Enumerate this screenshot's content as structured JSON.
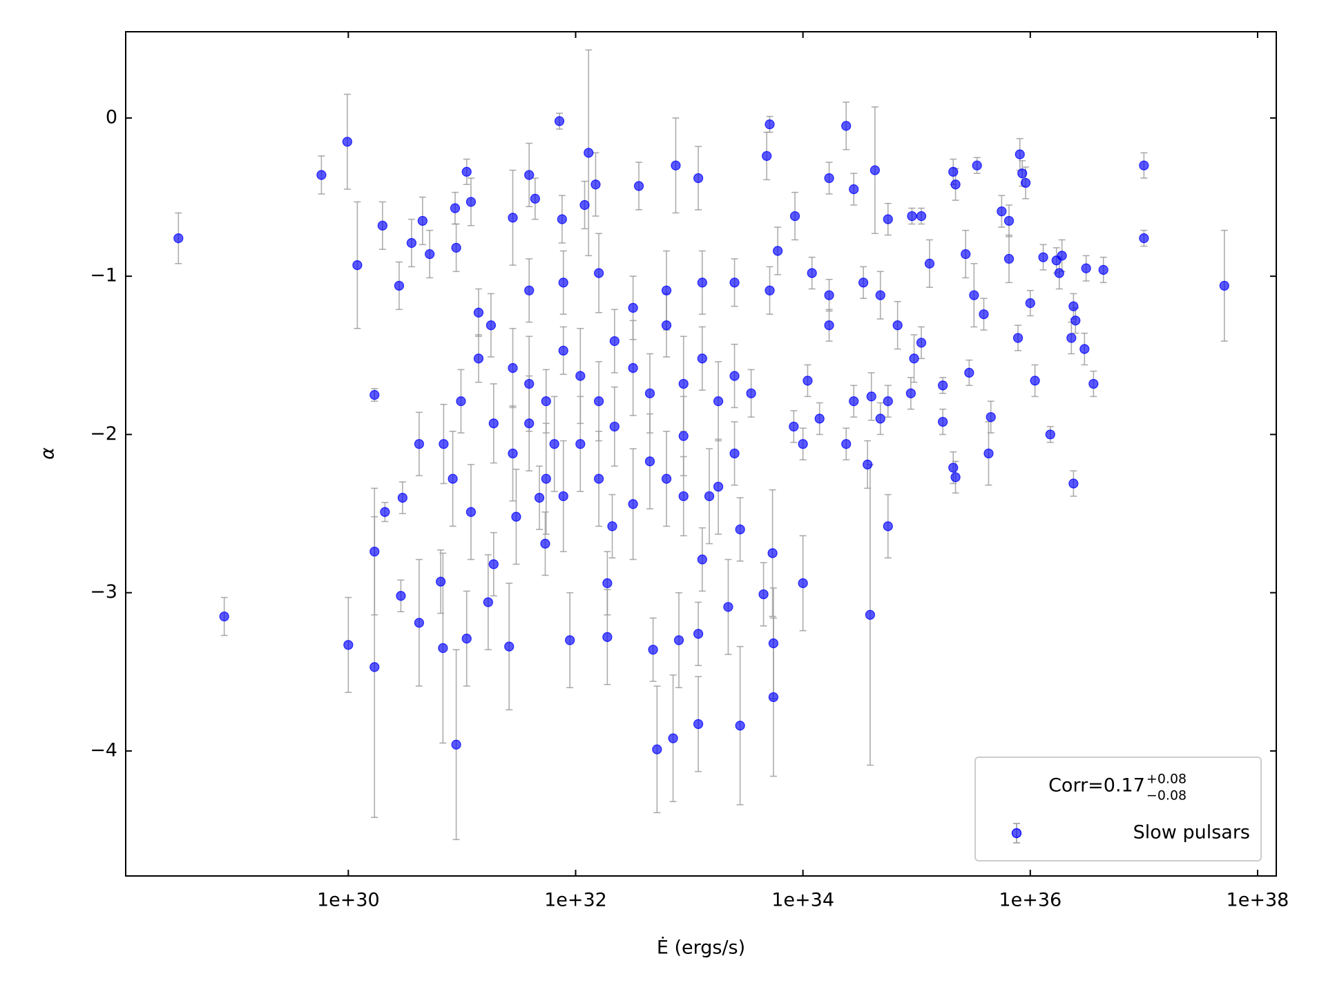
{
  "chart_data": {
    "type": "scatter",
    "xlabel": "Ė (ergs/s)",
    "ylabel": "α",
    "xscale": "log",
    "xlim": [
      1.1e+28,
      1.46e+38
    ],
    "ylim": [
      -4.79,
      0.545
    ],
    "xticks": [
      1e+30,
      1e+32,
      1e+34,
      1e+36,
      1e+38
    ],
    "yticks": [
      {
        "value": -4,
        "label": "−4"
      },
      {
        "value": -3,
        "label": "−3"
      },
      {
        "value": -2,
        "label": "−2"
      },
      {
        "value": -1,
        "label": "−1"
      },
      0
    ],
    "grid": false,
    "legend_loc": "lower right",
    "legend_title": {
      "text": "Corr=0.17",
      "sup": "+0.08",
      "sub": "−0.08"
    },
    "error_color": "#999999",
    "series": [
      {
        "name": "Slow pulsars",
        "color": "#0000ff",
        "x": [
          3.2e+28,
          8.1e+28,
          5.8e+29,
          9.8e+29,
          1e+30,
          1.2e+30,
          1.7e+30,
          1.7e+30,
          2e+30,
          1.7e+30,
          2.1e+30,
          2.9e+30,
          3e+30,
          2.8e+30,
          3.6e+30,
          4.2e+30,
          4.2e+30,
          4.5e+30,
          5.2e+30,
          6.5e+30,
          6.8e+30,
          8.9e+30,
          8.7e+30,
          1.1e+31,
          1.1e+31,
          8.9e+30,
          1.2e+31,
          1.4e+31,
          1.7e+31,
          1.9e+31,
          2.6e+31,
          2.8e+31,
          3e+31,
          3.9e+31,
          4.4e+31,
          4.8e+31,
          5.4e+31,
          7.2e+31,
          7.6e+31,
          8.9e+31,
          1.3e+32,
          1.5e+32,
          1.2e+32,
          1.9e+32,
          1.9e+32,
          2.1e+32,
          3.6e+32,
          4.8e+32,
          5.2e+32,
          7.2e+32,
          8.1e+32,
          7.6e+32,
          1.2e+33,
          1.2e+33,
          1.3e+33,
          1.2e+33,
          2.2e+33,
          2.8e+33,
          2.8e+33,
          5.1e+33,
          4.8e+33,
          5.5e+33,
          5.5e+33,
          4.5e+33,
          5.4e+33,
          6e+33,
          1e+34,
          8.5e+33,
          1.7e+34,
          2.4e+34,
          2.8e+34,
          3.9e+34,
          4.3e+34,
          5.6e+34,
          5.6e+34,
          9.1e+34,
          1.1e+35,
          1.3e+35,
          2.1e+35,
          2.2e+35,
          3.4e+35,
          2.7e+35,
          3.2e+35,
          3.9e+35,
          2.9e+35,
          2.1e+35,
          2.2e+35,
          4.3e+35,
          4.5e+35,
          1.7e+35,
          1.7e+35,
          5.6e+35,
          6.5e+35,
          6.5e+35,
          8.1e+35,
          8.5e+35,
          9.1e+35,
          7.8e+35,
          1e+36,
          1.1e+36,
          1.5e+36,
          1.3e+36,
          1.7e+36,
          1.9e+36,
          1.8e+36,
          2.3e+36,
          2.4e+36,
          2.5e+36,
          2.4e+36,
          3e+36,
          3.1e+36,
          3.6e+36,
          4.4e+36,
          1e+37,
          1e+37,
          5.1e+37,
          1.4e+31,
          1.8e+31,
          2.8e+31,
          3.9e+31,
          5.5e+31,
          7.8e+31,
          1.1e+32,
          1.6e+32,
          2.2e+32,
          3.2e+32,
          4.5e+32,
          6.3e+32,
          8.9e+32,
          1.3e+33,
          1.8e+33,
          2.5e+33,
          3.5e+33,
          2.8e+31,
          5.5e+31,
          1.1e+32,
          2.2e+32,
          4.5e+32,
          8.9e+32,
          1.8e+33,
          2.5e+33,
          9.8e+30,
          6.9e+30,
          8.3e+30,
          1.2e+31,
          1.9e+31,
          3.9e+31,
          6.5e+31,
          7.8e+31,
          1.6e+32,
          3.2e+32,
          6.3e+32,
          8.9e+32,
          1.5e+33,
          3.9e+31,
          7.8e+31,
          1.6e+32,
          3.2e+32,
          6.3e+32,
          1.3e+33,
          2.5e+33,
          5.1e+33,
          1.2e+34,
          1.7e+34,
          3.4e+34,
          4.8e+34,
          6.8e+34,
          9.5e+34,
          2.8e+34,
          4e+34,
          5.6e+34,
          4.8e+34,
          1.4e+34,
          1e+34,
          8.3e+33,
          2.4e+34,
          3.7e+34,
          1.1e+34,
          1.7e+34,
          8.9e+34,
          1.1e+35
        ],
        "values": [
          -0.76,
          -3.15,
          -0.36,
          -0.15,
          -3.33,
          -0.93,
          -3.47,
          -2.74,
          -0.68,
          -1.75,
          -2.49,
          -3.02,
          -2.4,
          -1.06,
          -0.79,
          -3.19,
          -2.06,
          -0.65,
          -0.86,
          -2.93,
          -3.35,
          -3.96,
          -0.57,
          -0.34,
          -3.29,
          -0.82,
          -0.53,
          -1.23,
          -3.06,
          -2.82,
          -3.34,
          -0.63,
          -2.52,
          -0.36,
          -0.51,
          -2.4,
          -2.69,
          -0.02,
          -0.64,
          -3.3,
          -0.22,
          -0.42,
          -0.55,
          -3.28,
          -2.94,
          -2.58,
          -0.43,
          -3.36,
          -3.99,
          -3.92,
          -3.3,
          -0.3,
          -0.38,
          -3.83,
          -2.79,
          -3.26,
          -3.09,
          -3.84,
          -2.6,
          -0.04,
          -0.24,
          -3.66,
          -3.32,
          -3.01,
          -2.75,
          -0.84,
          -2.94,
          -0.62,
          -0.38,
          -0.05,
          -0.45,
          -3.14,
          -0.33,
          -2.58,
          -0.64,
          -0.62,
          -0.62,
          -0.92,
          -0.34,
          -0.42,
          -0.3,
          -0.86,
          -1.12,
          -1.24,
          -1.61,
          -2.21,
          -2.27,
          -2.12,
          -1.89,
          -1.69,
          -1.92,
          -0.59,
          -0.65,
          -0.89,
          -0.23,
          -0.35,
          -0.41,
          -1.39,
          -1.17,
          -1.66,
          -2.0,
          -0.88,
          -0.9,
          -0.87,
          -0.98,
          -1.39,
          -1.19,
          -1.28,
          -2.31,
          -1.46,
          -0.95,
          -1.68,
          -0.96,
          -0.3,
          -0.76,
          -1.06,
          -1.52,
          -1.31,
          -1.58,
          -1.68,
          -1.79,
          -1.47,
          -1.63,
          -1.79,
          -1.41,
          -1.58,
          -1.74,
          -1.31,
          -1.68,
          -1.52,
          -1.79,
          -1.63,
          -1.74,
          -2.12,
          -2.28,
          -2.06,
          -1.95,
          -2.17,
          -2.01,
          -2.33,
          -2.12,
          -1.79,
          -2.06,
          -2.28,
          -2.49,
          -1.93,
          -1.93,
          -2.06,
          -2.39,
          -2.28,
          -2.44,
          -2.28,
          -2.39,
          -2.39,
          -1.09,
          -1.04,
          -0.98,
          -1.2,
          -1.09,
          -1.04,
          -1.04,
          -1.09,
          -0.98,
          -1.12,
          -1.04,
          -1.12,
          -1.31,
          -1.52,
          -1.79,
          -1.76,
          -1.79,
          -1.9,
          -1.9,
          -2.06,
          -1.95,
          -2.06,
          -2.19,
          -1.66,
          -1.31,
          -1.74,
          -1.42
        ],
        "errors": [
          0.16,
          0.12,
          0.12,
          0.3,
          0.3,
          0.4,
          0.95,
          0.4,
          0.15,
          0.04,
          0.06,
          0.1,
          0.1,
          0.15,
          0.15,
          0.4,
          0.2,
          0.15,
          0.15,
          0.2,
          0.6,
          0.6,
          0.1,
          0.08,
          0.3,
          0.15,
          0.15,
          0.15,
          0.3,
          0.2,
          0.4,
          0.3,
          0.3,
          0.2,
          0.13,
          0.2,
          0.2,
          0.05,
          0.15,
          0.3,
          0.65,
          0.2,
          0.15,
          0.3,
          0.2,
          0.2,
          0.15,
          0.2,
          0.4,
          0.4,
          0.3,
          0.3,
          0.2,
          0.3,
          0.2,
          0.2,
          0.3,
          0.5,
          0.2,
          0.05,
          0.15,
          0.5,
          0.35,
          0.2,
          0.4,
          0.15,
          0.3,
          0.15,
          0.1,
          0.15,
          0.1,
          0.95,
          0.4,
          0.2,
          0.1,
          0.05,
          0.05,
          0.15,
          0.08,
          0.1,
          0.05,
          0.15,
          0.2,
          0.1,
          0.08,
          0.1,
          0.1,
          0.2,
          0.1,
          0.05,
          0.08,
          0.1,
          0.1,
          0.15,
          0.1,
          0.08,
          0.1,
          0.08,
          0.08,
          0.1,
          0.05,
          0.08,
          0.08,
          0.1,
          0.1,
          0.1,
          0.08,
          0.08,
          0.08,
          0.1,
          0.08,
          0.08,
          0.08,
          0.08,
          0.05,
          0.35,
          0.15,
          0.2,
          0.25,
          0.3,
          0.2,
          0.15,
          0.3,
          0.25,
          0.2,
          0.3,
          0.25,
          0.2,
          0.3,
          0.2,
          0.25,
          0.2,
          0.15,
          0.3,
          0.35,
          0.3,
          0.25,
          0.3,
          0.25,
          0.3,
          0.2,
          0.2,
          0.25,
          0.3,
          0.3,
          0.25,
          0.3,
          0.3,
          0.35,
          0.3,
          0.35,
          0.3,
          0.25,
          0.3,
          0.2,
          0.2,
          0.25,
          0.2,
          0.25,
          0.2,
          0.15,
          0.15,
          0.1,
          0.1,
          0.1,
          0.15,
          0.15,
          0.15,
          0.1,
          0.15,
          0.1,
          0.1,
          0.1,
          0.1,
          0.1,
          0.1,
          0.15,
          0.1,
          0.1,
          0.1,
          0.1
        ]
      }
    ]
  }
}
